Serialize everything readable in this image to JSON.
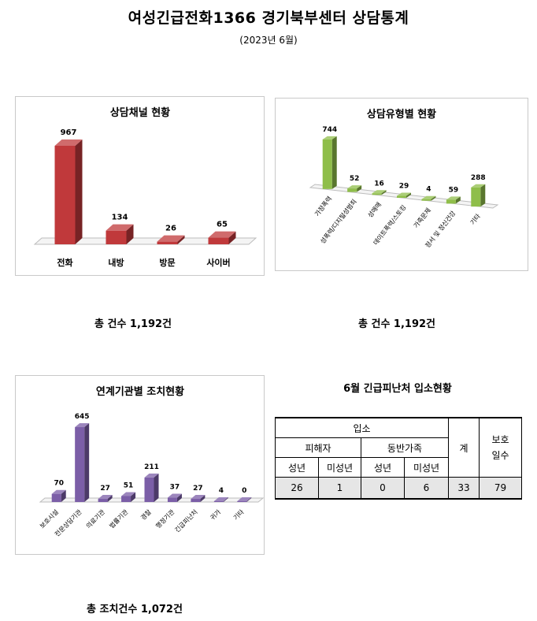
{
  "page": {
    "title": "여성긴급전화1366 경기북부센터 상담통계",
    "subtitle": "(2023년 6월)"
  },
  "chart_data": [
    {
      "id": "channel",
      "type": "bar",
      "title": "상담채널 현황",
      "categories": [
        "전화",
        "내방",
        "방문",
        "사이버"
      ],
      "values": [
        967,
        134,
        26,
        65
      ],
      "color": "#c0393b",
      "footer": "총 건수 1,192건"
    },
    {
      "id": "type",
      "type": "bar",
      "title": "상담유형별 현황",
      "categories": [
        "가정폭력",
        "성폭력/디지털성범죄",
        "성매매",
        "데이트폭력/스토킹",
        "가족문제",
        "정서 및 정신건강",
        "기타"
      ],
      "values": [
        744,
        52,
        16,
        29,
        4,
        59,
        288
      ],
      "color": "#8fbe4a",
      "footer": "총 건수 1,192건"
    },
    {
      "id": "agency",
      "type": "bar",
      "title": "연계기관별 조치현황",
      "categories": [
        "보호시설",
        "전문상담기관",
        "의료기관",
        "법률기관",
        "경찰",
        "행정기관",
        "긴급피난처",
        "귀가",
        "기타"
      ],
      "values": [
        70,
        645,
        27,
        51,
        211,
        37,
        27,
        4,
        0
      ],
      "color": "#7b5ea7",
      "footer": "총 조치건수 1,072건"
    }
  ],
  "shelter_table": {
    "title": "6월 긴급피난처 입소현황",
    "header_admission": "입소",
    "header_victim": "피해자",
    "header_family": "동반가족",
    "header_total": "계",
    "header_days": "보호\n일수",
    "header_adult": "성년",
    "header_minor": "미성년",
    "values": {
      "victim_adult": "26",
      "victim_minor": "1",
      "family_adult": "0",
      "family_minor": "6",
      "total": "33",
      "days": "79"
    }
  }
}
